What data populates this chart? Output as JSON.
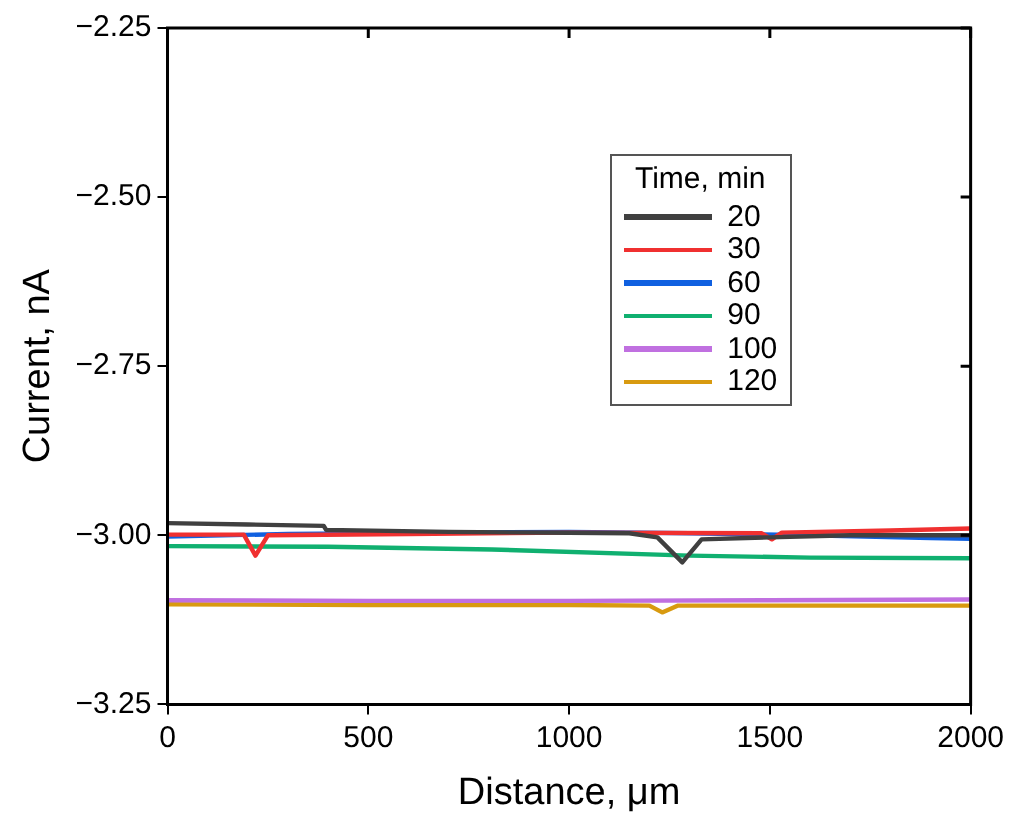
{
  "chart_data": {
    "type": "line",
    "xlabel": "Distance, μm",
    "ylabel": "Current, nA",
    "legend_title": "Time, min",
    "legend": "top right",
    "grid": false,
    "marker": "none",
    "line_style": "solid",
    "xlim": [
      0,
      2000
    ],
    "xticks": [
      0,
      500,
      1000,
      1500,
      2000
    ],
    "ylim": [
      -3.25,
      -2.25
    ],
    "yticks": [
      {
        "value": -3.25,
        "label": "−3.25"
      },
      {
        "value": -3.0,
        "label": "−3.00"
      },
      {
        "value": -2.75,
        "label": "−2.75"
      },
      {
        "value": -2.5,
        "label": "−2.50"
      },
      {
        "value": -2.25,
        "label": "−2.25"
      }
    ],
    "series": [
      {
        "name": "20",
        "color": "#404040",
        "x": [
          0,
          200,
          389,
          395,
          700,
          1150,
          1220,
          1282,
          1330,
          1500,
          1700,
          2000
        ],
        "values": [
          -2.982,
          -2.984,
          -2.986,
          -2.992,
          -2.995,
          -2.997,
          -3.003,
          -3.04,
          -3.006,
          -3.003,
          -3.0,
          -3.0
        ]
      },
      {
        "name": "30",
        "color": "#f03030",
        "x": [
          0,
          190,
          219,
          250,
          600,
          1000,
          1480,
          1505,
          1530,
          1800,
          2000
        ],
        "values": [
          -2.999,
          -2.999,
          -3.03,
          -3.0,
          -2.998,
          -2.996,
          -2.997,
          -3.006,
          -2.996,
          -2.993,
          -2.99
        ]
      },
      {
        "name": "60",
        "color": "#1060e0",
        "x": [
          0,
          300,
          700,
          1000,
          1300,
          1600,
          1900,
          2000
        ],
        "values": [
          -3.002,
          -2.998,
          -2.996,
          -2.995,
          -2.997,
          -3.0,
          -3.004,
          -3.005
        ]
      },
      {
        "name": "90",
        "color": "#10b070",
        "x": [
          0,
          400,
          808,
          1300,
          1600,
          2000
        ],
        "values": [
          -3.016,
          -3.017,
          -3.021,
          -3.03,
          -3.033,
          -3.034
        ]
      },
      {
        "name": "100",
        "color": "#c070e0",
        "x": [
          0,
          500,
          1000,
          1500,
          2000
        ],
        "values": [
          -3.096,
          -3.097,
          -3.097,
          -3.096,
          -3.095
        ]
      },
      {
        "name": "120",
        "color": "#d89a10",
        "x": [
          0,
          500,
          1000,
          1200,
          1232,
          1270,
          1600,
          2000
        ],
        "values": [
          -3.102,
          -3.103,
          -3.103,
          -3.104,
          -3.114,
          -3.104,
          -3.104,
          -3.104
        ]
      }
    ]
  }
}
